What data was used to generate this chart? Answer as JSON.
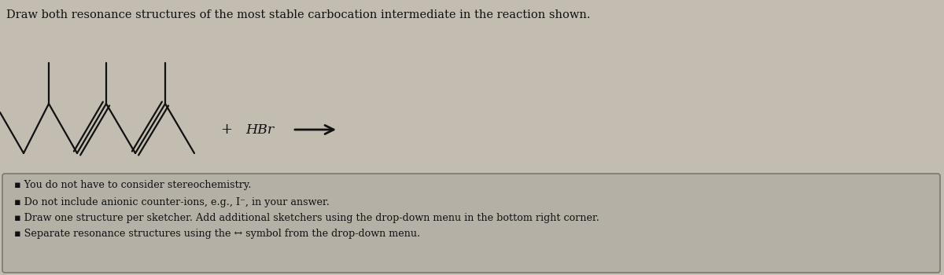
{
  "title": "Draw both resonance structures of the most stable carbocation intermediate in the reaction shown.",
  "title_fontsize": 10.5,
  "bg_color": "#c2bdb0",
  "box_bg_color": "#b5b0a5",
  "box_border_color": "#7a7870",
  "text_color": "#111111",
  "bullet_lines": [
    "You do not have to consider stereochemistry.",
    "Do not include anionic counter-ions, e.g., I⁻, in your answer.",
    "Draw one structure per sketcher. Add additional sketchers using the drop-down menu in the bottom right corner.",
    "Separate resonance structures using the ↔ symbol from the drop-down menu."
  ],
  "bullet_fontsize": 9.2,
  "hbr_text": "HBr",
  "plus_text": "+",
  "molecule_color": "#111111",
  "arrow_color": "#111111",
  "figsize": [
    12.0,
    3.5
  ],
  "dpi": 100
}
